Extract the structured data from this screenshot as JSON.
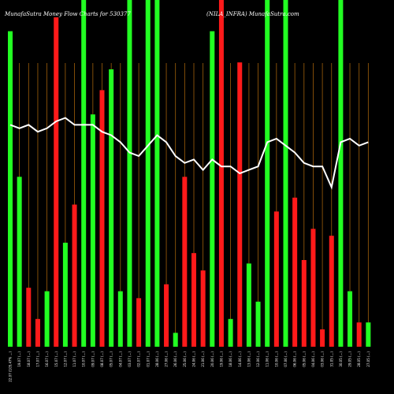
{
  "header": {
    "title": "MunafaSutra  Money Flow  Charts for 530377",
    "subtitle": "(NILA_INFRA)  MunafaSutra.com"
  },
  "colors": {
    "background": "#000000",
    "inflow": "#22ff22",
    "outflow": "#ff1a1a",
    "gridline": "#a0600a",
    "line": "#ffffff"
  },
  "chart_data": {
    "type": "bar",
    "title": "MunafaSutra  Money Flow  Charts for 530377",
    "subtitle": "(NILA_INFRA)  MunafaSutra.com",
    "ylim": [
      0,
      100
    ],
    "grid": true,
    "categories": [
      "22.07 (105.47% ...)",
      "19.07 (...)",
      "18.07 (...)",
      "17.07 (...)",
      "16.07 (...)",
      "15.07 (...)",
      "12.07 (...)",
      "11.07 (...)",
      "10.07 (...)",
      "09.07 (...)",
      "08.07 (...)",
      "05.07 (...)",
      "04.07 (...)",
      "03.07 (...)",
      "02.07 (...)",
      "01.07 (...)",
      "28.06 (...)",
      "27.06 (...)",
      "26.06 (...)",
      "25.06 (...)",
      "24.06 (...)",
      "21.06 (...)",
      "20.06 (...)",
      "19.06 (...)",
      "18.06 (...)",
      "14.06 (...)",
      "13.06 (...)",
      "12.06 (...)",
      "11.06 (...)",
      "10.06 (...)",
      "07.06 (...)",
      "06.06 (...)",
      "05.06 (...)",
      "04.06 (...)",
      "03.06 (...)",
      "31.05 (...)",
      "30.05 (...)",
      "29.05 (...)",
      "28.05 (...)",
      "27.05 (...)"
    ],
    "series": [
      {
        "values": [
          91,
          49,
          17,
          8,
          16,
          95,
          30,
          41,
          100,
          67,
          74,
          80,
          16,
          100,
          14,
          100,
          100,
          18,
          4,
          49,
          27,
          22,
          91,
          100,
          8,
          82,
          24,
          13,
          100,
          39,
          100,
          43,
          25,
          34,
          5,
          32,
          100,
          16,
          7,
          7
        ],
        "direction": [
          "in",
          "in",
          "out",
          "out",
          "in",
          "out",
          "in",
          "out",
          "in",
          "in",
          "out",
          "in",
          "in",
          "in",
          "out",
          "in",
          "in",
          "out",
          "in",
          "out",
          "out",
          "out",
          "in",
          "out",
          "in",
          "out",
          "in",
          "in",
          "in",
          "out",
          "in",
          "out",
          "out",
          "out",
          "out",
          "out",
          "in",
          "in",
          "out",
          "in"
        ]
      },
      {
        "values": [
          64,
          63,
          64,
          62,
          63,
          65,
          66,
          64,
          64,
          64,
          62,
          61,
          59,
          56,
          55,
          58,
          61,
          59,
          55,
          53,
          54,
          51,
          54,
          52,
          52,
          50,
          51,
          52,
          59,
          60,
          58,
          56,
          53,
          52,
          52,
          46,
          59,
          60,
          58,
          59
        ]
      }
    ]
  }
}
